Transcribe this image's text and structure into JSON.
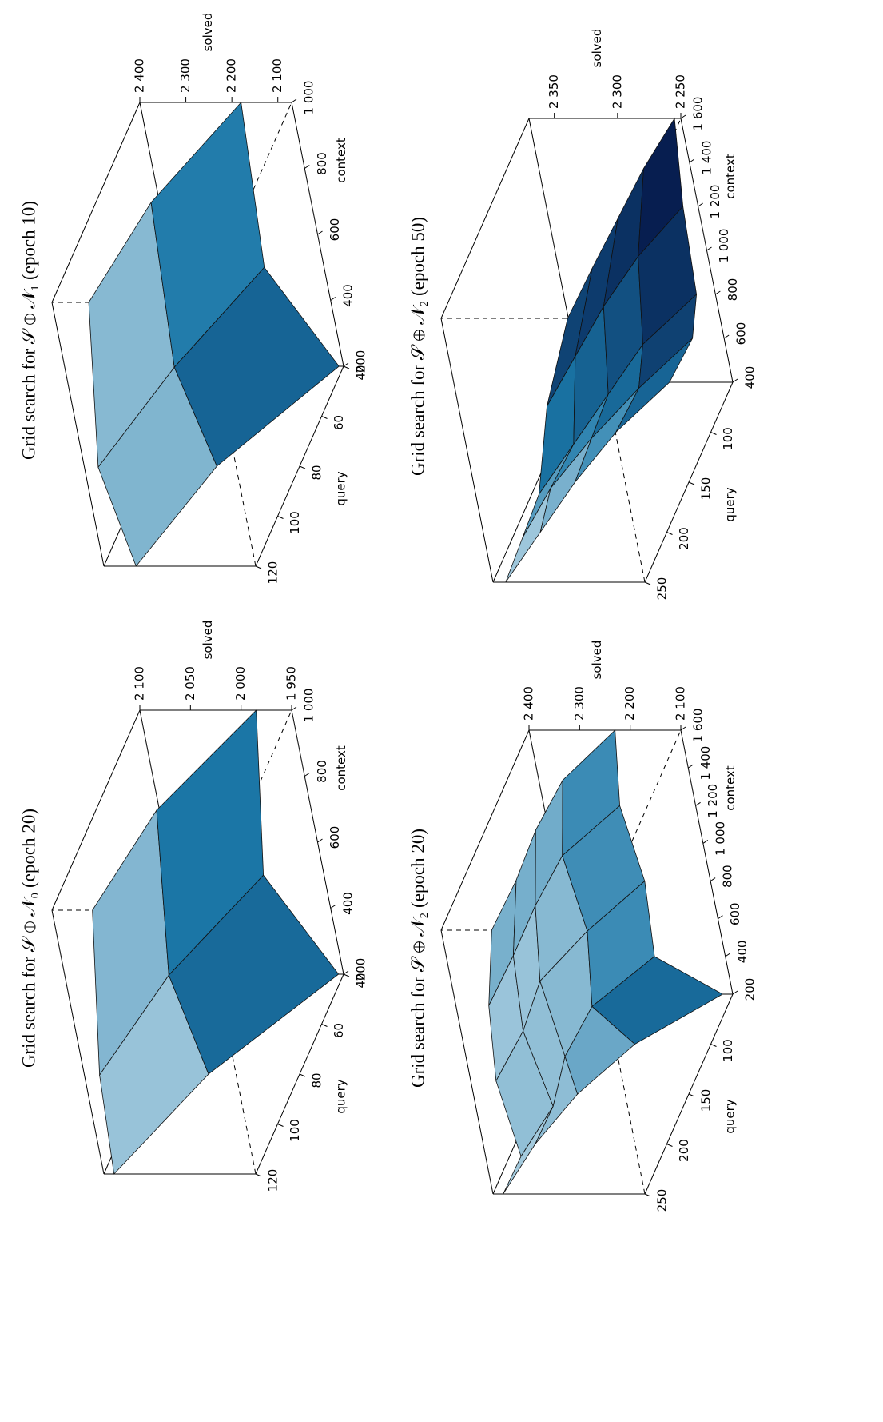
{
  "chart_data": [
    {
      "type": "surface",
      "title": "Grid search for 𝒮 ⊕ 𝒩₀ (epoch 20)",
      "xlabel": "context",
      "ylabel": "query",
      "zlabel": "solved",
      "x": [
        200,
        500,
        1000
      ],
      "y": [
        40,
        80,
        120
      ],
      "z": [
        [
          1955,
          2010,
          1985
        ],
        [
          2040,
          2060,
          2040
        ],
        [
          2090,
          2085,
          2060
        ]
      ],
      "xlim": [
        200,
        1000
      ],
      "xticks": [
        200,
        400,
        600,
        800,
        {
          "value": 1000,
          "label": "1 000"
        }
      ],
      "ylim": [
        40,
        120
      ],
      "yticks": [
        40,
        60,
        80,
        100,
        120
      ],
      "zlim": [
        1950,
        2100
      ],
      "zticks": [
        {
          "value": 1950,
          "label": "1 950"
        },
        {
          "value": 2000,
          "label": "2 000"
        },
        {
          "value": 2050,
          "label": "2 050"
        },
        {
          "value": 2100,
          "label": "2 100"
        }
      ],
      "colormap": [
        "#000033",
        "#1b78a8",
        "#f2f9fc"
      ]
    },
    {
      "type": "surface",
      "title": "Grid search for 𝒮 ⊕ 𝒩₁ (epoch 10)",
      "xlabel": "context",
      "ylabel": "query",
      "zlabel": "solved",
      "x": [
        200,
        500,
        1000
      ],
      "y": [
        40,
        80,
        120
      ],
      "z": [
        [
          2080,
          2200,
          2180
        ],
        [
          2250,
          2300,
          2280
        ],
        [
          2330,
          2370,
          2320
        ]
      ],
      "xlim": [
        200,
        1000
      ],
      "xticks": [
        200,
        400,
        600,
        800,
        {
          "value": 1000,
          "label": "1 000"
        }
      ],
      "ylim": [
        40,
        120
      ],
      "yticks": [
        40,
        60,
        80,
        100,
        120
      ],
      "zlim": [
        2070,
        2400
      ],
      "zticks": [
        {
          "value": 2100,
          "label": "2 100"
        },
        {
          "value": 2200,
          "label": "2 200"
        },
        {
          "value": 2300,
          "label": "2 300"
        },
        {
          "value": 2400,
          "label": "2 400"
        }
      ],
      "colormap": [
        "#000033",
        "#1b78a8",
        "#f2f9fc"
      ]
    },
    {
      "type": "surface",
      "title": "Grid search for 𝒮 ⊕ 𝒩₂ (epoch 20)",
      "xlabel": "context",
      "ylabel": "query",
      "zlabel": "solved",
      "x": [
        200,
        400,
        800,
        1200,
        1600
      ],
      "y": [
        50,
        100,
        150,
        200,
        250
      ],
      "z": [
        [
          2120,
          2240,
          2230,
          2250,
          2230
        ],
        [
          2250,
          2320,
          2300,
          2320,
          2290
        ],
        [
          2320,
          2330,
          2350,
          2330,
          2300
        ],
        [
          2360,
          2310,
          2340,
          2330,
          2295
        ],
        [
          2380,
          2330,
          2350,
          2335,
          2300
        ]
      ],
      "xlim": [
        200,
        1600
      ],
      "xticks": [
        200,
        400,
        600,
        800,
        {
          "value": 1000,
          "label": "1 000"
        },
        {
          "value": 1200,
          "label": "1 200"
        },
        {
          "value": 1400,
          "label": "1 400"
        },
        {
          "value": 1600,
          "label": "1 600"
        }
      ],
      "ylim": [
        50,
        250
      ],
      "yticks": [
        100,
        150,
        200,
        250
      ],
      "zlim": [
        2100,
        2400
      ],
      "zticks": [
        {
          "value": 2100,
          "label": "2 100"
        },
        {
          "value": 2200,
          "label": "2 200"
        },
        {
          "value": 2300,
          "label": "2 300"
        },
        {
          "value": 2400,
          "label": "2 400"
        }
      ],
      "colormap": [
        "#000033",
        "#1b78a8",
        "#f2f9fc"
      ]
    },
    {
      "type": "surface",
      "title": "Grid search for 𝒮 ⊕ 𝒩₂ (epoch 50)",
      "xlabel": "context",
      "ylabel": "query",
      "zlabel": "solved",
      "x": [
        400,
        600,
        800,
        1200,
        1600
      ],
      "y": [
        50,
        100,
        150,
        200,
        250
      ],
      "z": [
        [
          2300,
          2275,
          2265,
          2262,
          2255
        ],
        [
          2325,
          2300,
          2290,
          2280,
          2262
        ],
        [
          2340,
          2320,
          2300,
          2290,
          2265
        ],
        [
          2350,
          2335,
          2310,
          2295,
          2268
        ],
        [
          2360,
          2340,
          2320,
          2300,
          2270
        ]
      ],
      "xlim": [
        400,
        1600
      ],
      "xticks": [
        400,
        600,
        800,
        {
          "value": 1000,
          "label": "1 000"
        },
        {
          "value": 1200,
          "label": "1 200"
        },
        {
          "value": 1400,
          "label": "1 400"
        },
        {
          "value": 1600,
          "label": "1 600"
        }
      ],
      "ylim": [
        50,
        250
      ],
      "yticks": [
        100,
        150,
        200,
        250
      ],
      "zlim": [
        2250,
        2370
      ],
      "zticks": [
        {
          "value": 2250,
          "label": "2 250"
        },
        {
          "value": 2300,
          "label": "2 300"
        },
        {
          "value": 2350,
          "label": "2 350"
        }
      ],
      "colormap": [
        "#000033",
        "#1b78a8",
        "#f2f9fc"
      ]
    }
  ]
}
